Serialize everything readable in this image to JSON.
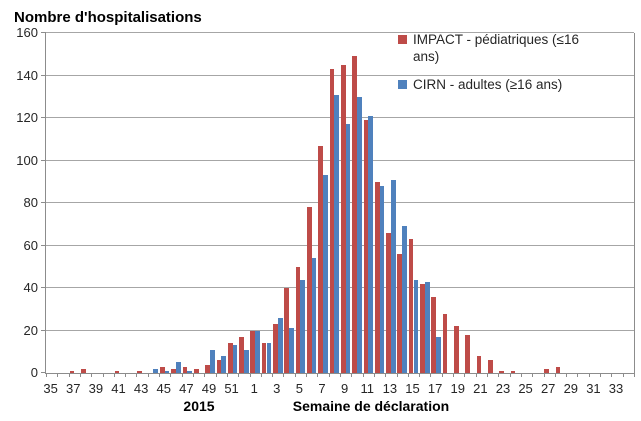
{
  "title": "Nombre d'hospitalisations",
  "colors": {
    "impact_red": "#BE4B48",
    "cirn_blue": "#4F81BD",
    "gridline": "#A6A6A6",
    "axis": "#8C8C8C"
  },
  "legend": {
    "items": [
      {
        "label": "IMPACT - pédiatriques (≤16 ans)",
        "color": "#BE4B48"
      },
      {
        "label": "CIRN - adultes (≥16 ans)",
        "color": "#4F81BD"
      }
    ]
  },
  "x_axis": {
    "year_group_label": "2015",
    "title": "Semaine de déclaration"
  },
  "chart_data": {
    "type": "bar",
    "title": "Nombre d'hospitalisations",
    "xlabel": "Semaine de déclaration",
    "ylabel": "Nombre d'hospitalisations",
    "ylim": [
      0,
      160
    ],
    "y_step": 20,
    "grid": "horizontal",
    "legend_position": "top-right-inside",
    "categories": [
      "35",
      "36",
      "37",
      "38",
      "39",
      "40",
      "41",
      "42",
      "43",
      "44",
      "45",
      "46",
      "47",
      "48",
      "49",
      "50",
      "51",
      "52",
      "1",
      "2",
      "3",
      "4",
      "5",
      "6",
      "7",
      "8",
      "9",
      "10",
      "11",
      "12",
      "13",
      "14",
      "15",
      "16",
      "17",
      "18",
      "19",
      "20",
      "21",
      "22",
      "23",
      "24",
      "25",
      "26",
      "27",
      "28",
      "29",
      "30",
      "31",
      "32",
      "33",
      "34"
    ],
    "category_years": {
      "2015": [
        "35",
        "52"
      ],
      "2016": [
        "1",
        "34"
      ]
    },
    "tick_labels_shown": [
      "35",
      "37",
      "39",
      "41",
      "43",
      "45",
      "47",
      "49",
      "51",
      "1",
      "3",
      "5",
      "7",
      "9",
      "11",
      "13",
      "15",
      "17",
      "19",
      "21",
      "23",
      "25",
      "27",
      "29",
      "31",
      "33"
    ],
    "series": [
      {
        "name": "IMPACT - pédiatriques (≤16 ans)",
        "color": "#BE4B48",
        "values": [
          0,
          0,
          1,
          2,
          0,
          0,
          1,
          0,
          1,
          0,
          3,
          2,
          3,
          2,
          4,
          6,
          14,
          17,
          20,
          14,
          23,
          40,
          50,
          78,
          107,
          143,
          145,
          149,
          119,
          90,
          66,
          56,
          63,
          42,
          36,
          28,
          22,
          18,
          8,
          6,
          1,
          1,
          0,
          0,
          2,
          3,
          0,
          0,
          0,
          0,
          0,
          0
        ]
      },
      {
        "name": "CIRN - adultes (≥16 ans)",
        "color": "#4F81BD",
        "values": [
          0,
          0,
          0,
          0,
          0,
          0,
          0,
          0,
          0,
          2,
          1,
          5,
          1,
          0,
          11,
          8,
          13,
          11,
          20,
          14,
          26,
          21,
          44,
          54,
          93,
          131,
          117,
          130,
          121,
          88,
          91,
          69,
          44,
          43,
          17,
          0,
          0,
          0,
          0,
          0,
          0,
          0,
          0,
          0,
          0,
          0,
          0,
          0,
          0,
          0,
          0,
          0
        ]
      }
    ]
  }
}
